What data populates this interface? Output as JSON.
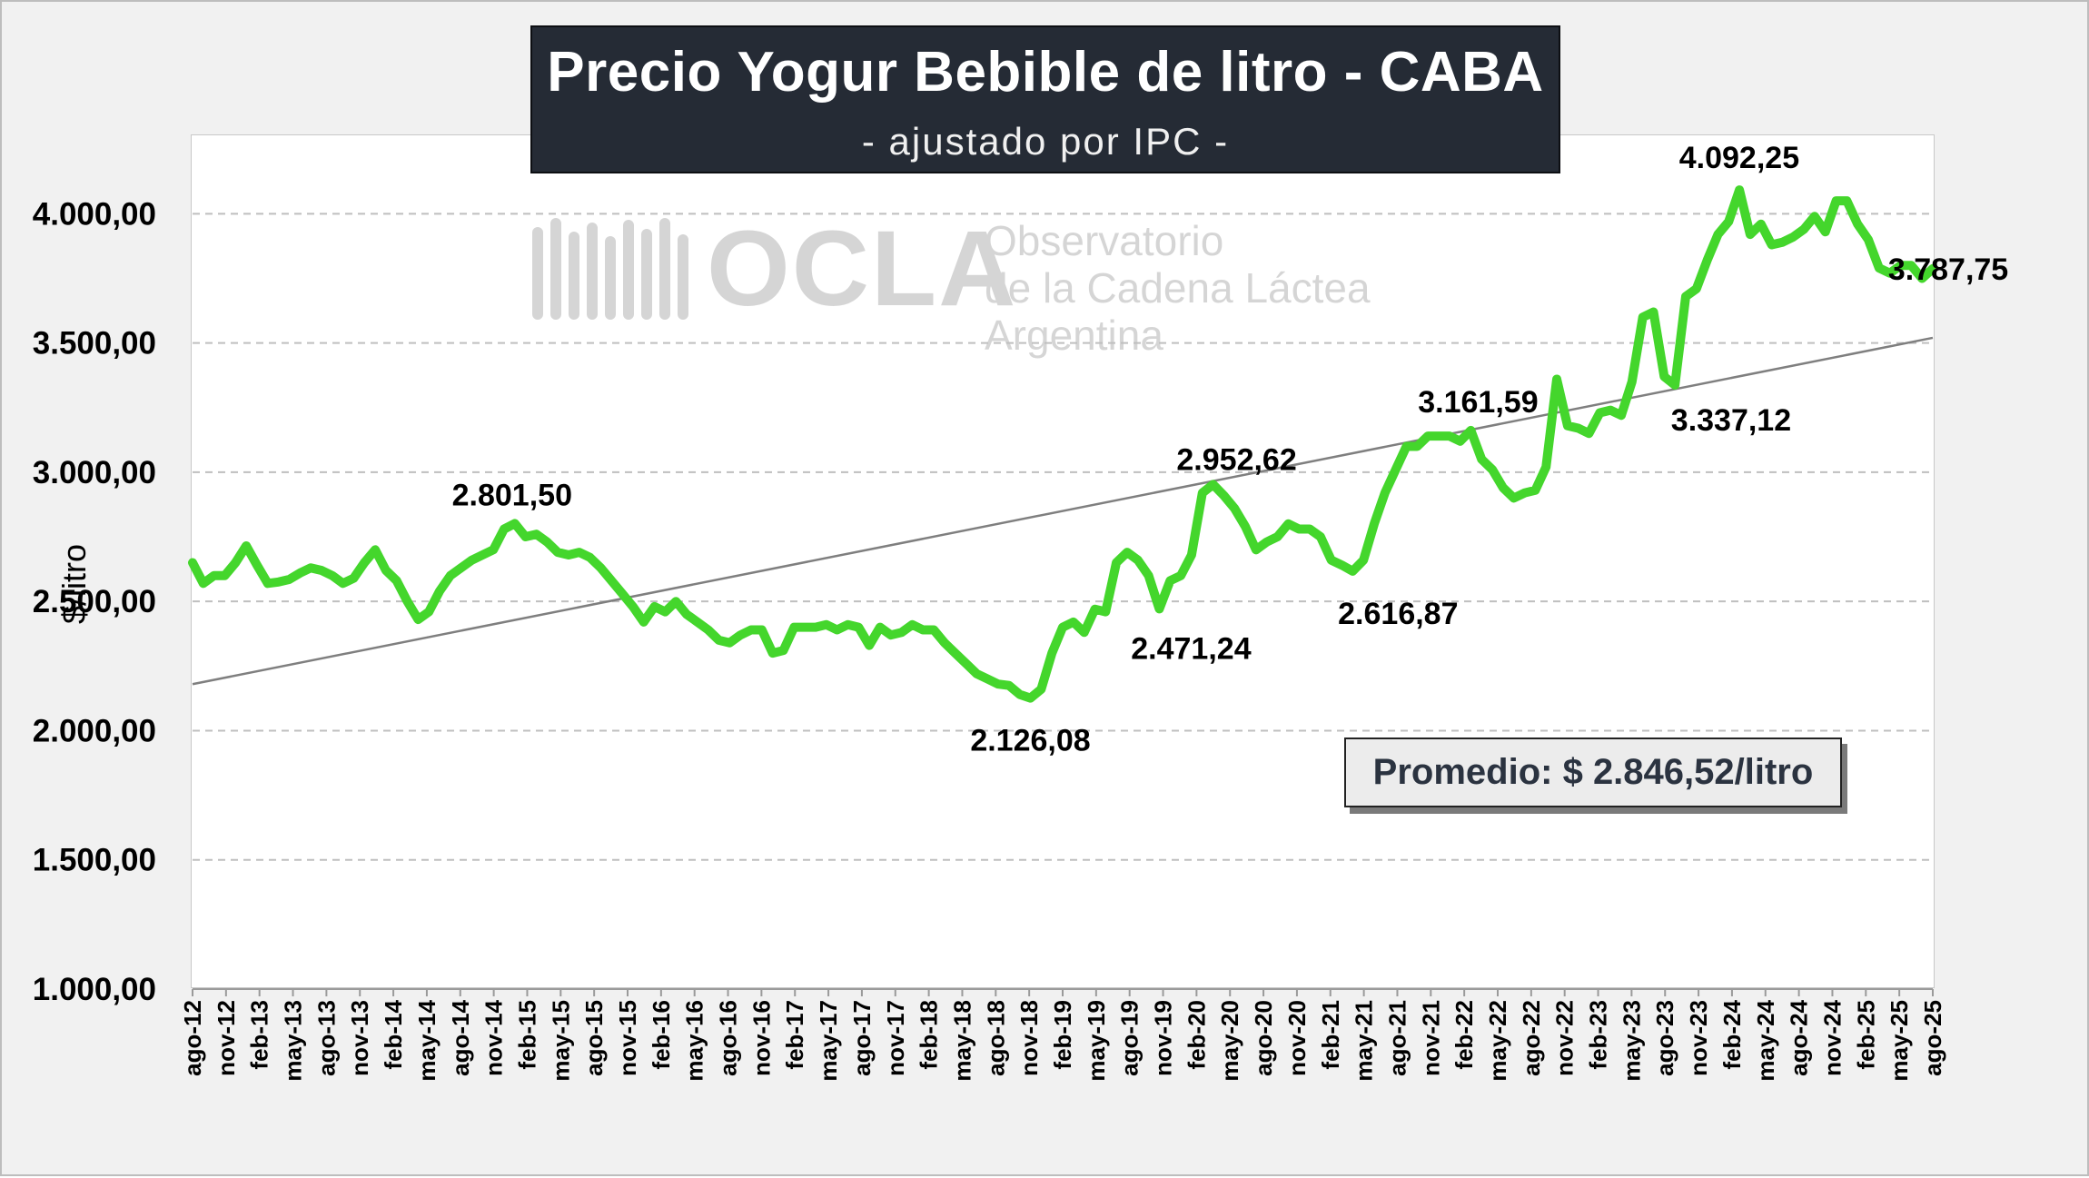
{
  "title": "Precio Yogur Bebible de litro - CABA",
  "subtitle": "- ajustado por IPC -",
  "watermark": {
    "logo_text": "OCLA",
    "line1": "Observatorio",
    "line2": "de la Cadena Láctea",
    "line3": "Argentina"
  },
  "average_label": "Promedio: $ 2.846,52/litro",
  "colors": {
    "line": "#44d62c",
    "trend": "#7f7f7f",
    "grid": "#bfbfbf",
    "title_bg": "#252b35",
    "background": "#f1f1f1"
  },
  "chart_data": {
    "type": "line",
    "ylabel": "$/litro",
    "xlabel": "",
    "ylim": [
      1000,
      4300
    ],
    "ytick_values": [
      1000,
      1500,
      2000,
      2500,
      3000,
      3500,
      4000
    ],
    "ytick_labels": [
      "1.000,00",
      "1.500,00",
      "2.000,00",
      "2.500,00",
      "3.000,00",
      "3.500,00",
      "4.000,00"
    ],
    "grid": "horizontal dashed",
    "xtick_labels": [
      "ago-12",
      "nov-12",
      "feb-13",
      "may-13",
      "ago-13",
      "nov-13",
      "feb-14",
      "may-14",
      "ago-14",
      "nov-14",
      "feb-15",
      "may-15",
      "ago-15",
      "nov-15",
      "feb-16",
      "may-16",
      "ago-16",
      "nov-16",
      "feb-17",
      "may-17",
      "ago-17",
      "nov-17",
      "feb-18",
      "may-18",
      "ago-18",
      "nov-18",
      "feb-19",
      "may-19",
      "ago-19",
      "nov-19",
      "feb-20",
      "may-20",
      "ago-20",
      "nov-20",
      "feb-21",
      "may-21",
      "ago-21",
      "nov-21",
      "feb-22",
      "may-22",
      "ago-22",
      "nov-22",
      "feb-23",
      "may-23",
      "ago-23",
      "nov-23",
      "feb-24",
      "may-24",
      "ago-24",
      "nov-24",
      "feb-25",
      "may-25",
      "ago-25"
    ],
    "series": [
      {
        "values": [
          2650,
          2570,
          2600,
          2600,
          2650,
          2715,
          2640,
          2570,
          2575,
          2585,
          2610,
          2630,
          2620,
          2600,
          2570,
          2590,
          2650,
          2700,
          2620,
          2580,
          2500,
          2430,
          2460,
          2540,
          2600,
          2630,
          2660,
          2680,
          2700,
          2780,
          2801.5,
          2750,
          2760,
          2730,
          2690,
          2680,
          2690,
          2670,
          2630,
          2580,
          2530,
          2480,
          2420,
          2480,
          2460,
          2500,
          2450,
          2420,
          2390,
          2350,
          2340,
          2370,
          2390,
          2390,
          2300,
          2310,
          2400,
          2400,
          2400,
          2410,
          2390,
          2410,
          2400,
          2330,
          2400,
          2370,
          2380,
          2410,
          2390,
          2390,
          2340,
          2300,
          2260,
          2220,
          2200,
          2180,
          2175,
          2140,
          2126.08,
          2160,
          2300,
          2400,
          2420,
          2380,
          2470,
          2460,
          2650,
          2690,
          2660,
          2600,
          2471.24,
          2580,
          2600,
          2680,
          2920,
          2952.62,
          2910,
          2860,
          2790,
          2700,
          2730,
          2750,
          2800,
          2780,
          2780,
          2750,
          2660,
          2640,
          2616.87,
          2660,
          2800,
          2920,
          3010,
          3100,
          3100,
          3140,
          3140,
          3140,
          3120,
          3161.59,
          3050,
          3010,
          2940,
          2900,
          2920,
          2930,
          3020,
          3360,
          3180,
          3170,
          3150,
          3230,
          3240,
          3220,
          3350,
          3600,
          3620,
          3370,
          3337.12,
          3680,
          3710,
          3820,
          3920,
          3970,
          4092.25,
          3920,
          3960,
          3880,
          3890,
          3910,
          3940,
          3990,
          3930,
          4050,
          4050,
          3960,
          3900,
          3790,
          3770,
          3800,
          3800,
          3750,
          3787.75
        ]
      }
    ],
    "trend_line": {
      "start": 2180,
      "end": 3520
    },
    "annotations": [
      {
        "text": "2.801,50",
        "index": 30,
        "value": 2801.5
      },
      {
        "text": "2.126,08",
        "index": 78,
        "value": 2126.08
      },
      {
        "text": "2.471,24",
        "index": 90,
        "value": 2471.24
      },
      {
        "text": "2.952,62",
        "index": 95,
        "value": 2952.62
      },
      {
        "text": "2.616,87",
        "index": 108,
        "value": 2616.87
      },
      {
        "text": "3.161,59",
        "index": 119,
        "value": 3161.59
      },
      {
        "text": "3.337,12",
        "index": 139,
        "value": 3337.12
      },
      {
        "text": "4.092,25",
        "index": 145,
        "value": 4092.25
      },
      {
        "text": "3.787,75",
        "index": 157,
        "value": 3787.75
      }
    ]
  }
}
